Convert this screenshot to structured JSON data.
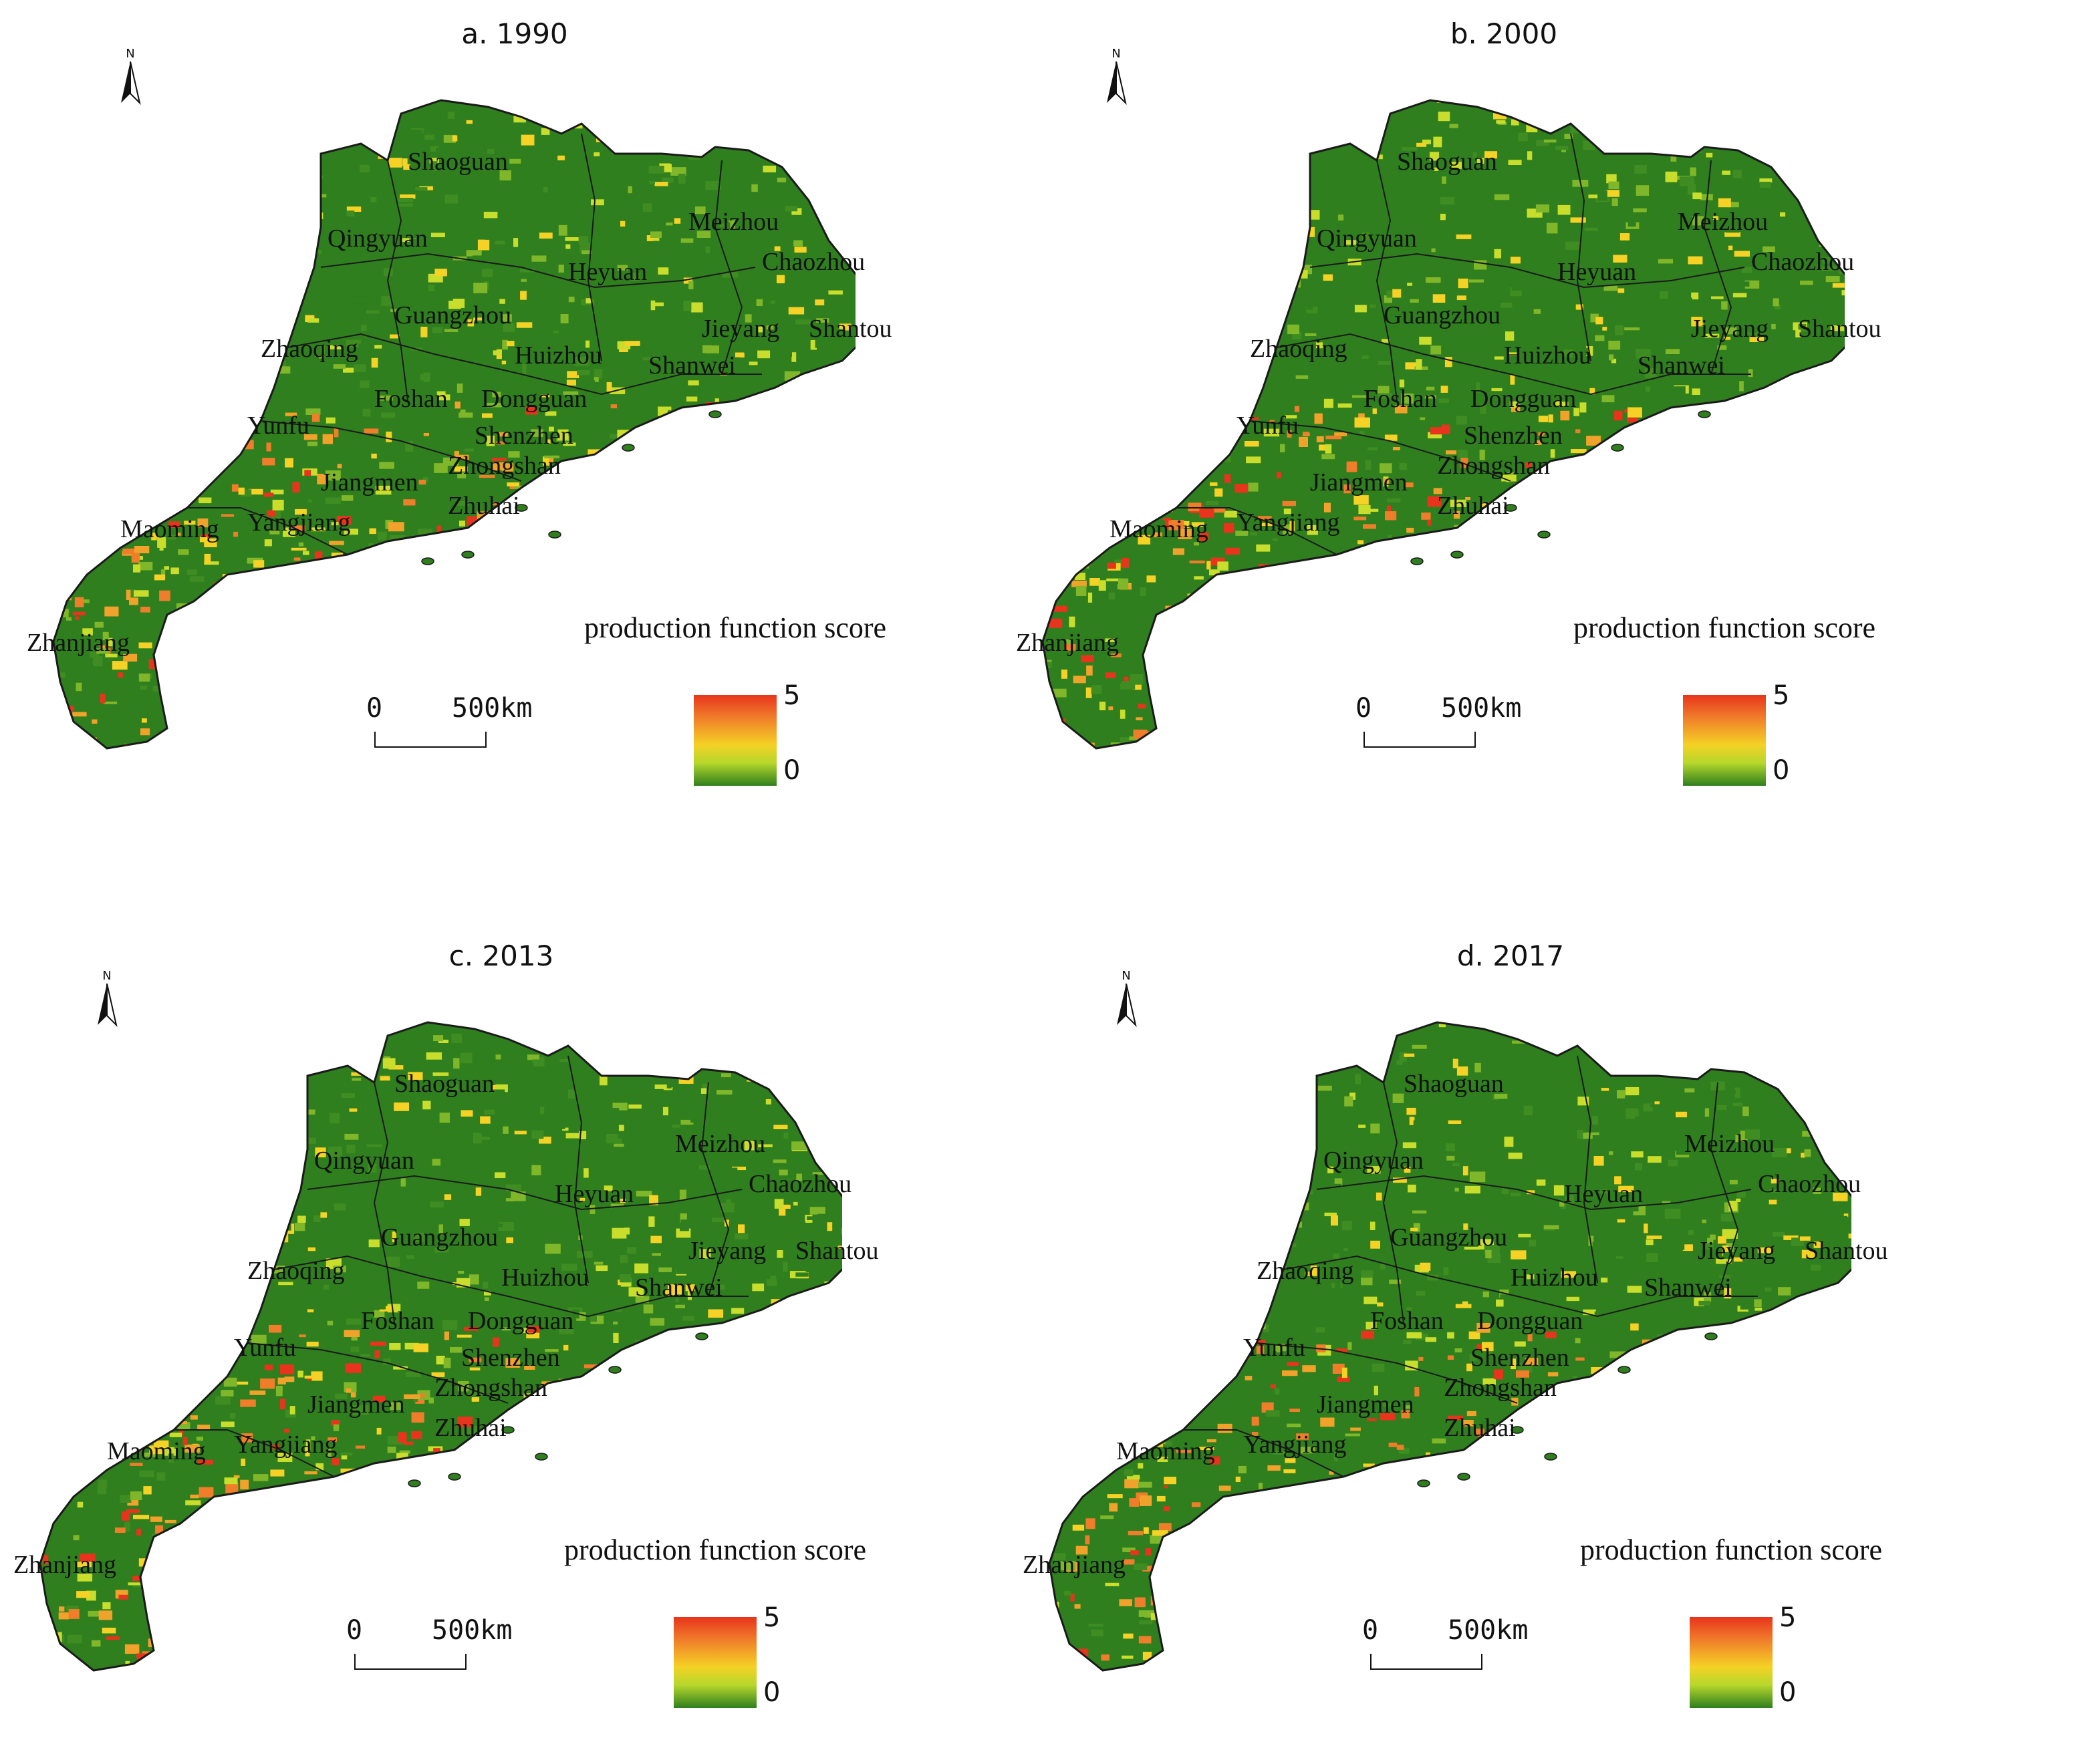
{
  "panels": [
    {
      "title": "a. 1990",
      "north_label": "N",
      "cities": [
        "Shaoguan",
        "Qingyuan",
        "Meizhou",
        "Chaozhou",
        "Heyuan",
        "Guangzhou",
        "Jieyang",
        "Shantou",
        "Zhaoqing",
        "Huizhou",
        "Shanwei",
        "Foshan",
        "Dongguan",
        "Yunfu",
        "Shenzhen",
        "Zhongshan",
        "Jiangmen",
        "Zhuhai",
        "Maoming",
        "Yangjiang",
        "Zhanjiang"
      ],
      "legend": {
        "title": "production function score",
        "max": "5",
        "min": "0"
      },
      "scale": {
        "zero": "0",
        "distance": "500km"
      }
    },
    {
      "title": "b. 2000",
      "north_label": "N",
      "cities": [
        "Shaoguan",
        "Qingyuan",
        "Meizhou",
        "Chaozhou",
        "Heyuan",
        "Guangzhou",
        "Jieyang",
        "Shantou",
        "Zhaoqing",
        "Huizhou",
        "Shanwei",
        "Foshan",
        "Dongguan",
        "Yunfu",
        "Shenzhen",
        "Zhongshan",
        "Jiangmen",
        "Zhuhai",
        "Maoming",
        "Yangjiang",
        "Zhanjiang"
      ],
      "legend": {
        "title": "production function score",
        "max": "5",
        "min": "0"
      },
      "scale": {
        "zero": "0",
        "distance": "500km"
      }
    },
    {
      "title": "c. 2013",
      "north_label": "N",
      "cities": [
        "Shaoguan",
        "Qingyuan",
        "Meizhou",
        "Chaozhou",
        "Heyuan",
        "Guangzhou",
        "Jieyang",
        "Shantou",
        "Zhaoqing",
        "Huizhou",
        "Shanwei",
        "Foshan",
        "Dongguan",
        "Yunfu",
        "Shenzhen",
        "Zhongshan",
        "Jiangmen",
        "Zhuhai",
        "Maoming",
        "Yangjiang",
        "Zhanjiang"
      ],
      "legend": {
        "title": "production function score",
        "max": "5",
        "min": "0"
      },
      "scale": {
        "zero": "0",
        "distance": "500km"
      }
    },
    {
      "title": "d. 2017",
      "north_label": "N",
      "cities": [
        "Shaoguan",
        "Qingyuan",
        "Meizhou",
        "Chaozhou",
        "Heyuan",
        "Guangzhou",
        "Jieyang",
        "Shantou",
        "Zhaoqing",
        "Huizhou",
        "Shanwei",
        "Foshan",
        "Dongguan",
        "Yunfu",
        "Shenzhen",
        "Zhongshan",
        "Jiangmen",
        "Zhuhai",
        "Maoming",
        "Yangjiang",
        "Zhanjiang"
      ],
      "legend": {
        "title": "production function score",
        "max": "5",
        "min": "0"
      },
      "scale": {
        "zero": "0",
        "distance": "500km"
      }
    }
  ],
  "colors": {
    "high": "#e8341c",
    "mid_high": "#f07d2a",
    "mid": "#f5d225",
    "low_mid": "#b6d62c",
    "low": "#2f7f1e",
    "boundary": "#1a1a1a"
  }
}
